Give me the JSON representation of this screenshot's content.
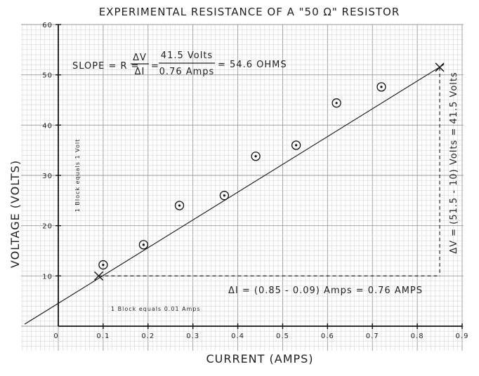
{
  "chart_data": {
    "type": "scatter",
    "title": "EXPERIMENTAL RESISTANCE OF A \"50 Ω\" RESISTOR",
    "xlabel": "CURRENT (AMPS)",
    "ylabel": "VOLTAGE (VOLTS)",
    "xlim": [
      0,
      0.9
    ],
    "ylim": [
      0,
      60
    ],
    "grid": true,
    "x_ticks": [
      0,
      0.1,
      0.2,
      0.3,
      0.4,
      0.5,
      0.6,
      0.7,
      0.8,
      0.9
    ],
    "x_tick_labels": [
      "0",
      "0.1",
      "0.2",
      "0.3",
      "0.4",
      "0.5",
      "0.6",
      "0.7",
      "0.8",
      "0.9"
    ],
    "y_ticks": [
      10,
      20,
      30,
      40,
      50,
      60
    ],
    "y_tick_labels": [
      "10",
      "20",
      "30",
      "40",
      "50",
      "60"
    ],
    "points": [
      {
        "x": 0.1,
        "y": 12.2
      },
      {
        "x": 0.19,
        "y": 16.2
      },
      {
        "x": 0.27,
        "y": 24.0
      },
      {
        "x": 0.37,
        "y": 26.0
      },
      {
        "x": 0.44,
        "y": 33.8
      },
      {
        "x": 0.53,
        "y": 36.0
      },
      {
        "x": 0.62,
        "y": 44.4
      },
      {
        "x": 0.72,
        "y": 47.6
      }
    ],
    "fit_line": {
      "x_start": -0.075,
      "y_start": 0.4,
      "x_end": 0.85,
      "y_end": 51.5
    },
    "fit_markers": [
      {
        "x": 0.09,
        "y": 10
      },
      {
        "x": 0.85,
        "y": 51.5
      }
    ],
    "annotations": {
      "slope": "SLOPE = R = ΔV/ΔI = 41.5 Volts / 0.76 Amps = 54.6 OHMS",
      "slope_parts": {
        "lhs": "SLOPE = R =",
        "dv": "ΔV",
        "di": "ΔI",
        "eq": "=",
        "num": "41.5 Volts",
        "den": "0.76 Amps",
        "result": "= 54.6 OHMS"
      },
      "delta_i": "ΔI = (0.85 - 0.09) Amps = 0.76 AMPS",
      "delta_v": "ΔV = (51.5 - 10) Volts = 41.5 Volts",
      "x_block": "1 Block equals 0.01 Amps",
      "y_block": "1 Block equals 1 Volt"
    }
  }
}
